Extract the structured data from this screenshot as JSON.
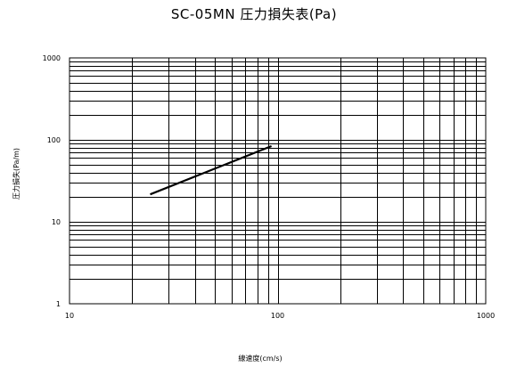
{
  "chart_data": {
    "type": "line",
    "title": "SC-05MN 圧力損失表(Pa)",
    "xlabel": "線速度(cm/s)",
    "ylabel": "圧力損失(Pa/m)",
    "x_scale": "log",
    "y_scale": "log",
    "xlim": [
      10,
      1000
    ],
    "ylim": [
      1,
      1000
    ],
    "x_ticks": [
      "10",
      "100",
      "1000"
    ],
    "y_ticks": [
      "1",
      "10",
      "100",
      "1000"
    ],
    "grid": true,
    "legend": "none",
    "series": [
      {
        "color": "#000000",
        "x": [
          24.4,
          93.4
        ],
        "y": [
          21.6,
          84.0
        ]
      }
    ]
  }
}
